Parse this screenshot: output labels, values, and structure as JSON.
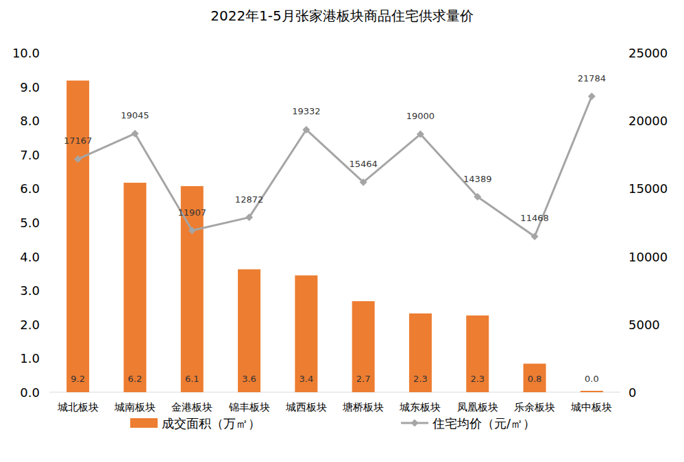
{
  "chart_data": {
    "type": "bar",
    "title": "2022年1-5月张家港板块商品住宅供求量价",
    "categories": [
      "城北板块",
      "城南板块",
      "金港板块",
      "锦丰板块",
      "城西板块",
      "塘桥板块",
      "城东板块",
      "凤凰板块",
      "乐余板块",
      "城中板块"
    ],
    "series": [
      {
        "name": "成交面积（万㎡）",
        "type": "bar",
        "color": "#ED7D31",
        "values": [
          9.18,
          6.17,
          6.07,
          3.62,
          3.44,
          2.68,
          2.32,
          2.26,
          0.84,
          0.04
        ],
        "value_labels": [
          "9.2",
          "6.2",
          "6.1",
          "3.6",
          "3.4",
          "2.7",
          "2.3",
          "2.3",
          "0.8",
          "0.0"
        ]
      },
      {
        "name": "住宅均价（元/㎡）",
        "type": "line",
        "color": "#A5A5A5",
        "marker": "diamond",
        "axis": "y2",
        "values": [
          17167,
          19045,
          11907,
          12872,
          19332,
          15464,
          19000,
          14389,
          11468,
          21784
        ]
      }
    ],
    "ylim": [
      0,
      10
    ],
    "yticks": [
      {
        "value": 0,
        "label": "0.0"
      },
      {
        "value": 1,
        "label": "1.0"
      },
      {
        "value": 2,
        "label": "2.0"
      },
      {
        "value": 3,
        "label": "3.0"
      },
      {
        "value": 4,
        "label": "4.0"
      },
      {
        "value": 5,
        "label": "5.0"
      },
      {
        "value": 6,
        "label": "6.0"
      },
      {
        "value": 7,
        "label": "7.0"
      },
      {
        "value": 8,
        "label": "8.0"
      },
      {
        "value": 9,
        "label": "9.0"
      },
      {
        "value": 10,
        "label": "10.0"
      }
    ],
    "y2lim": [
      0,
      25000
    ],
    "y2ticks": [
      0,
      5000,
      10000,
      15000,
      20000,
      25000
    ],
    "data_labels": true,
    "legend": "bottom",
    "grid": false
  }
}
